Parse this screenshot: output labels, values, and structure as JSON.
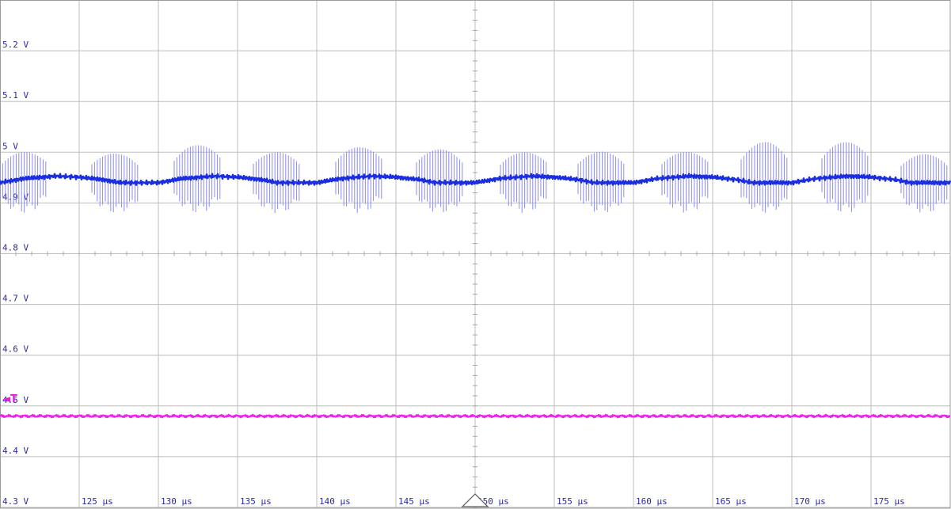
{
  "chart_data": {
    "type": "line",
    "title": "",
    "xlabel": "",
    "ylabel": "",
    "grid": true,
    "xlim": [
      120,
      180
    ],
    "ylim": [
      4.3,
      5.3
    ],
    "x_ticks": [
      125,
      130,
      135,
      140,
      145,
      150,
      155,
      160,
      165,
      170,
      175
    ],
    "x_tick_labels": [
      "125 µs",
      "130 µs",
      "135 µs",
      "140 µs",
      "145 µs",
      "150 µs",
      "155 µs",
      "160 µs",
      "165 µs",
      "170 µs",
      "175 µs"
    ],
    "y_ticks": [
      4.3,
      4.4,
      4.5,
      4.6,
      4.7,
      4.8,
      4.9,
      5.0,
      5.1,
      5.2
    ],
    "y_tick_labels": [
      "4.3 V",
      "4.4 V",
      "4.5 V",
      "4.6 V",
      "4.7 V",
      "4.8 V",
      "4.9 V",
      "5 V",
      "5.1 V",
      "5.2 V"
    ],
    "trigger_marker": "◄T",
    "trigger_level": 4.515,
    "series": [
      {
        "color": "#1a2ee0",
        "spike_color": "#8a8af5",
        "x": [
          120,
          121.5,
          123.5,
          125,
          126.5,
          127.5,
          128.5,
          130,
          131.5,
          133.5,
          135,
          136.5,
          137.5,
          138.5,
          140,
          141.5,
          143.5,
          145,
          146.5,
          147.5,
          148.5,
          150,
          151.5,
          153.5,
          155,
          156.5,
          157.5,
          158.5,
          160,
          161.5,
          163.5,
          165,
          166.5,
          167.5,
          168.5,
          170,
          171.5,
          173.5,
          175,
          176.5,
          177.5,
          178.5,
          180
        ],
        "y": [
          4.94,
          4.948,
          4.953,
          4.951,
          4.946,
          4.94,
          4.94,
          4.94,
          4.948,
          4.953,
          4.951,
          4.946,
          4.94,
          4.94,
          4.94,
          4.948,
          4.953,
          4.951,
          4.946,
          4.94,
          4.94,
          4.94,
          4.948,
          4.953,
          4.951,
          4.946,
          4.94,
          4.94,
          4.94,
          4.948,
          4.953,
          4.951,
          4.946,
          4.94,
          4.94,
          4.94,
          4.948,
          4.953,
          4.951,
          4.946,
          4.94,
          4.94,
          4.94
        ],
        "spike_bursts": [
          [
            120.0,
            123.0
          ],
          [
            125.8,
            128.8
          ],
          [
            131.0,
            134.0
          ],
          [
            136.0,
            139.0
          ],
          [
            141.2,
            144.2
          ],
          [
            146.3,
            149.3
          ],
          [
            151.6,
            154.6
          ],
          [
            156.5,
            159.5
          ],
          [
            161.8,
            164.8
          ],
          [
            166.8,
            169.8
          ],
          [
            171.9,
            174.9
          ],
          [
            176.9,
            179.9
          ]
        ],
        "spike_range": [
          4.88,
          5.02
        ]
      },
      {
        "color": "#ee22ee",
        "x": [
          120,
          180
        ],
        "y": [
          4.48,
          4.48
        ]
      }
    ]
  }
}
